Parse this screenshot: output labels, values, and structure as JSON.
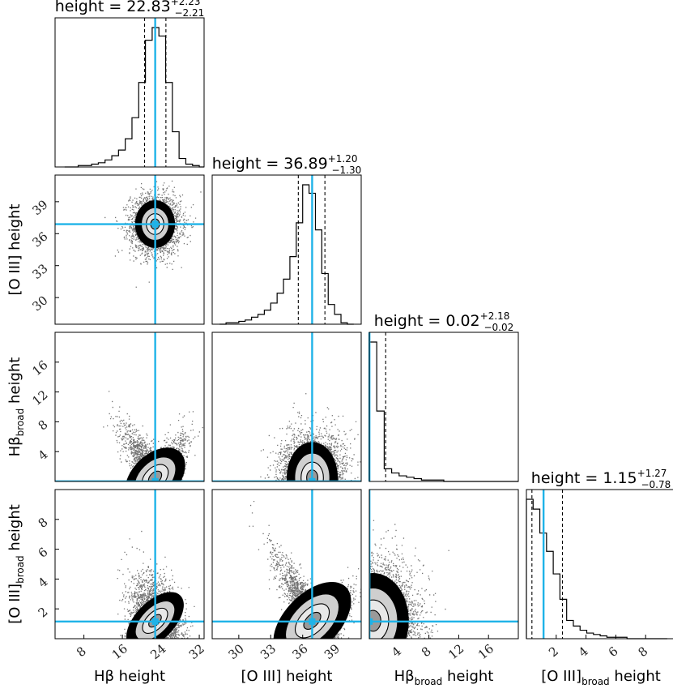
{
  "chart_data": {
    "type": "corner",
    "truth_color": "#1fb3e8",
    "parameters": [
      {
        "key": "hb",
        "label_main": "Hβ height",
        "label_sub": "",
        "range": [
          2,
          33
        ],
        "ticks": [
          8,
          16,
          24,
          32
        ],
        "tick_labels": [
          "8",
          "16",
          "24",
          "32"
        ]
      },
      {
        "key": "oiii",
        "label_main": "[O III] height",
        "label_sub": "",
        "range": [
          27.5,
          41.5
        ],
        "ticks": [
          30,
          33,
          36,
          39
        ],
        "tick_labels": [
          "30",
          "33",
          "36",
          "39"
        ]
      },
      {
        "key": "hb_broad",
        "label_main": "Hβ",
        "label_sub": "broad",
        "label_tail": " height",
        "range": [
          0,
          20
        ],
        "ticks": [
          4,
          8,
          12,
          16
        ],
        "tick_labels": [
          "4",
          "8",
          "12",
          "16"
        ]
      },
      {
        "key": "oiii_broad",
        "label_main": "[O III]",
        "label_sub": "broad",
        "label_tail": " height",
        "range": [
          0,
          10
        ],
        "ticks": [
          2,
          4,
          6,
          8
        ],
        "tick_labels": [
          "2",
          "4",
          "6",
          "8"
        ]
      }
    ],
    "titles": [
      {
        "text": "height = 22.83",
        "sup": "+2.23",
        "sub": "−2.21"
      },
      {
        "text": "height = 36.89",
        "sup": "+1.20",
        "sub": "−1.30"
      },
      {
        "text": "height = 0.02",
        "sup": "+2.18",
        "sub": "−0.02"
      },
      {
        "text": "height = 1.15",
        "sup": "+1.27",
        "sub": "−0.78"
      }
    ],
    "truth": [
      22.83,
      36.89,
      0.02,
      1.15
    ],
    "quantiles": [
      [
        20.62,
        25.06
      ],
      [
        35.59,
        38.09
      ],
      [
        0.0,
        2.2
      ],
      [
        0.37,
        2.42
      ]
    ],
    "histograms": [
      {
        "edges_start": 4,
        "bin": 1.4,
        "counts": [
          0,
          0,
          1,
          1,
          2,
          3,
          5,
          8,
          12,
          20,
          35,
          60,
          90,
          99,
          93,
          60,
          25,
          6,
          2,
          1,
          0
        ]
      },
      {
        "edges_start": 28.2,
        "bin": 0.6,
        "counts": [
          0,
          1,
          1,
          2,
          3,
          5,
          7,
          10,
          15,
          22,
          32,
          48,
          72,
          99,
          93,
          67,
          36,
          14,
          7,
          1,
          0
        ]
      },
      {
        "edges_start": 0,
        "bin": 1.0,
        "counts": [
          99,
          50,
          9,
          6,
          4,
          3,
          2,
          1,
          1,
          1,
          0,
          0,
          0,
          0,
          0,
          0,
          0,
          0,
          0,
          0
        ]
      },
      {
        "edges_start": 0,
        "bin": 0.45,
        "counts": [
          99,
          92,
          75,
          62,
          46,
          28,
          13,
          9,
          6,
          4,
          3,
          2,
          1,
          1,
          1,
          0,
          0,
          0,
          0,
          0,
          0
        ]
      }
    ],
    "pairs": [
      {
        "x": 0,
        "y": 1,
        "cx": 22.8,
        "cy": 36.9,
        "sx": 2.6,
        "sy": 1.4,
        "rho": 0.0
      },
      {
        "x": 0,
        "y": 2,
        "cx": 22.8,
        "cy": 0.5,
        "sx": 3.0,
        "sy": 3.0,
        "rho": -0.85
      },
      {
        "x": 1,
        "y": 2,
        "cx": 36.9,
        "cy": 0.5,
        "sx": 1.5,
        "sy": 3.0,
        "rho": 0.0
      },
      {
        "x": 0,
        "y": 3,
        "cx": 22.8,
        "cy": 1.2,
        "sx": 2.5,
        "sy": 1.5,
        "rho": -0.3
      },
      {
        "x": 1,
        "y": 3,
        "cx": 36.9,
        "cy": 1.2,
        "sx": 1.6,
        "sy": 2.0,
        "rho": -0.9
      },
      {
        "x": 2,
        "y": 3,
        "cx": 0.5,
        "cy": 1.2,
        "sx": 3.0,
        "sy": 2.0,
        "rho": 0.0
      }
    ]
  }
}
